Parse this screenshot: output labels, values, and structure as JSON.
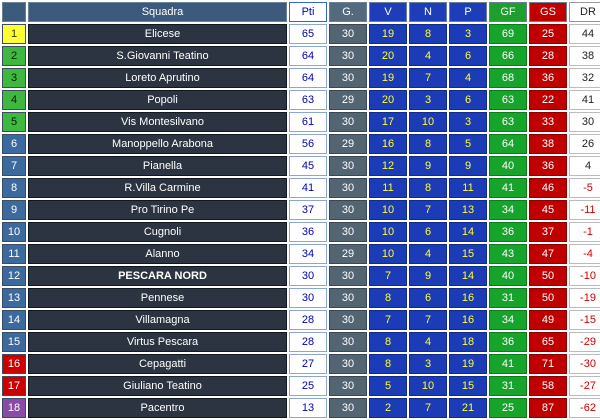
{
  "headers": {
    "pos": "",
    "team": "Squadra",
    "pts": "Pti",
    "g": "G.",
    "v": "V",
    "n": "N",
    "p": "P",
    "gf": "GF",
    "gs": "GS",
    "dr": "DR"
  },
  "colors": {
    "first": "#ffff33",
    "promotion": "#40b840",
    "mid": "#3d6a9e",
    "relegation": "#cc0000",
    "last": "#8a4aa8"
  },
  "rows": [
    {
      "pos": "1",
      "team": "Elicese",
      "pts": "65",
      "g": "30",
      "v": "19",
      "n": "8",
      "p": "3",
      "gf": "69",
      "gs": "25",
      "dr": "44",
      "zone": "first",
      "bold": false
    },
    {
      "pos": "2",
      "team": "S.Giovanni Teatino",
      "pts": "64",
      "g": "30",
      "v": "20",
      "n": "4",
      "p": "6",
      "gf": "66",
      "gs": "28",
      "dr": "38",
      "zone": "top",
      "bold": false
    },
    {
      "pos": "3",
      "team": "Loreto Aprutino",
      "pts": "64",
      "g": "30",
      "v": "19",
      "n": "7",
      "p": "4",
      "gf": "68",
      "gs": "36",
      "dr": "32",
      "zone": "top",
      "bold": false
    },
    {
      "pos": "4",
      "team": "Popoli",
      "pts": "63",
      "g": "29",
      "v": "20",
      "n": "3",
      "p": "6",
      "gf": "63",
      "gs": "22",
      "dr": "41",
      "zone": "top",
      "bold": false
    },
    {
      "pos": "5",
      "team": "Vis Montesilvano",
      "pts": "61",
      "g": "30",
      "v": "17",
      "n": "10",
      "p": "3",
      "gf": "63",
      "gs": "33",
      "dr": "30",
      "zone": "top",
      "bold": false
    },
    {
      "pos": "6",
      "team": "Manoppello Arabona",
      "pts": "56",
      "g": "29",
      "v": "16",
      "n": "8",
      "p": "5",
      "gf": "64",
      "gs": "38",
      "dr": "26",
      "zone": "mid",
      "bold": false
    },
    {
      "pos": "7",
      "team": "Pianella",
      "pts": "45",
      "g": "30",
      "v": "12",
      "n": "9",
      "p": "9",
      "gf": "40",
      "gs": "36",
      "dr": "4",
      "zone": "mid",
      "bold": false
    },
    {
      "pos": "8",
      "team": "R.Villa Carmine",
      "pts": "41",
      "g": "30",
      "v": "11",
      "n": "8",
      "p": "11",
      "gf": "41",
      "gs": "46",
      "dr": "-5",
      "zone": "mid",
      "bold": false
    },
    {
      "pos": "9",
      "team": "Pro Tirino Pe",
      "pts": "37",
      "g": "30",
      "v": "10",
      "n": "7",
      "p": "13",
      "gf": "34",
      "gs": "45",
      "dr": "-11",
      "zone": "mid",
      "bold": false
    },
    {
      "pos": "10",
      "team": "Cugnoli",
      "pts": "36",
      "g": "30",
      "v": "10",
      "n": "6",
      "p": "14",
      "gf": "36",
      "gs": "37",
      "dr": "-1",
      "zone": "mid",
      "bold": false
    },
    {
      "pos": "11",
      "team": "Alanno",
      "pts": "34",
      "g": "29",
      "v": "10",
      "n": "4",
      "p": "15",
      "gf": "43",
      "gs": "47",
      "dr": "-4",
      "zone": "mid",
      "bold": false
    },
    {
      "pos": "12",
      "team": "PESCARA NORD",
      "pts": "30",
      "g": "30",
      "v": "7",
      "n": "9",
      "p": "14",
      "gf": "40",
      "gs": "50",
      "dr": "-10",
      "zone": "mid",
      "bold": true
    },
    {
      "pos": "13",
      "team": "Pennese",
      "pts": "30",
      "g": "30",
      "v": "8",
      "n": "6",
      "p": "16",
      "gf": "31",
      "gs": "50",
      "dr": "-19",
      "zone": "mid",
      "bold": false
    },
    {
      "pos": "14",
      "team": "Villamagna",
      "pts": "28",
      "g": "30",
      "v": "7",
      "n": "7",
      "p": "16",
      "gf": "34",
      "gs": "49",
      "dr": "-15",
      "zone": "mid",
      "bold": false
    },
    {
      "pos": "15",
      "team": "Virtus Pescara",
      "pts": "28",
      "g": "30",
      "v": "8",
      "n": "4",
      "p": "18",
      "gf": "36",
      "gs": "65",
      "dr": "-29",
      "zone": "mid",
      "bold": false
    },
    {
      "pos": "16",
      "team": "Cepagatti",
      "pts": "27",
      "g": "30",
      "v": "8",
      "n": "3",
      "p": "19",
      "gf": "41",
      "gs": "71",
      "dr": "-30",
      "zone": "rel",
      "bold": false
    },
    {
      "pos": "17",
      "team": "Giuliano Teatino",
      "pts": "25",
      "g": "30",
      "v": "5",
      "n": "10",
      "p": "15",
      "gf": "31",
      "gs": "58",
      "dr": "-27",
      "zone": "rel",
      "bold": false
    },
    {
      "pos": "18",
      "team": "Pacentro",
      "pts": "13",
      "g": "30",
      "v": "2",
      "n": "7",
      "p": "21",
      "gf": "25",
      "gs": "87",
      "dr": "-62",
      "zone": "lastp",
      "bold": false
    }
  ]
}
